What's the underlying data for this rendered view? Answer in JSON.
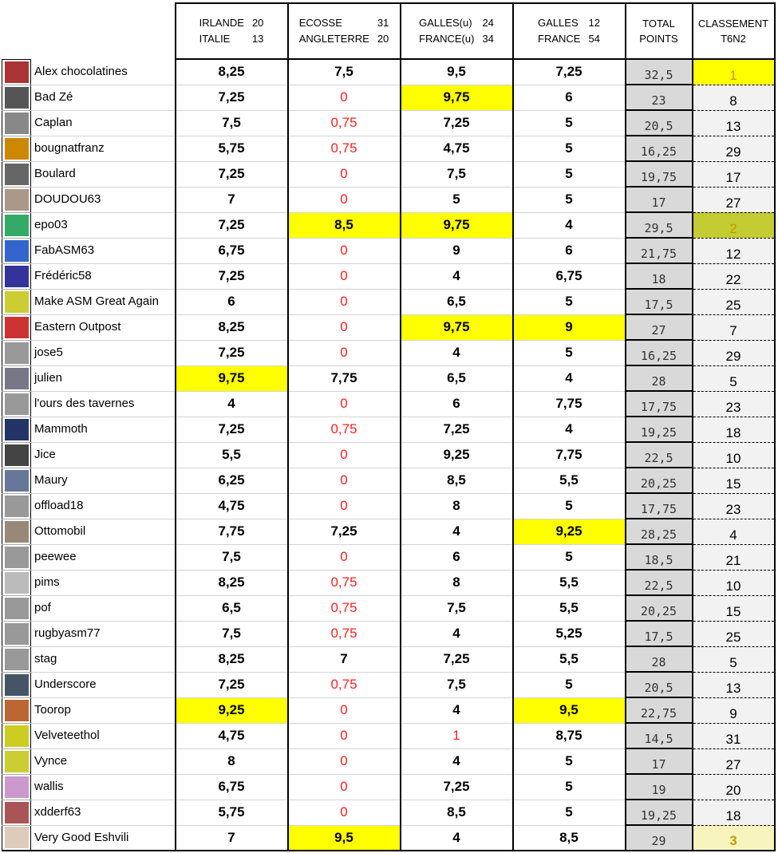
{
  "headers": {
    "match1": [
      "IRLANDE",
      "20",
      "ITALIE",
      "13"
    ],
    "match2": [
      "ECOSSE",
      "31",
      "ANGLETERRE",
      "20"
    ],
    "match3": [
      "GALLES(u)",
      "24",
      "FRANCE(u)",
      "34"
    ],
    "match4": [
      "GALLES",
      "12",
      "FRANCE",
      "54"
    ],
    "total": [
      "TOTAL",
      "POINTS"
    ],
    "rank": [
      "CLASSEMENT",
      "T6N2"
    ]
  },
  "colors": {
    "highlight": "#ffff00",
    "red": "#ff2020",
    "rank1": "#ffff00",
    "rank2": "#c4cc33",
    "rank3": "#f7f4bd"
  },
  "rows": [
    {
      "name": "Alex chocolatines",
      "scores": [
        "8,25",
        "7,5",
        "9,5",
        "7,25"
      ],
      "total": "32,5",
      "rank": "1",
      "yellow": [],
      "red": []
    },
    {
      "name": "Bad Zé",
      "scores": [
        "7,25",
        "0",
        "9,75",
        "6"
      ],
      "total": "23",
      "rank": "8",
      "yellow": [
        2
      ],
      "red": [
        1
      ]
    },
    {
      "name": "Caplan",
      "scores": [
        "7,5",
        "0,75",
        "7,25",
        "5"
      ],
      "total": "20,5",
      "rank": "13",
      "yellow": [],
      "red": [
        1
      ]
    },
    {
      "name": "bougnatfranz",
      "scores": [
        "5,75",
        "0,75",
        "4,75",
        "5"
      ],
      "total": "16,25",
      "rank": "29",
      "yellow": [],
      "red": [
        1
      ]
    },
    {
      "name": "Boulard",
      "scores": [
        "7,25",
        "0",
        "7,5",
        "5"
      ],
      "total": "19,75",
      "rank": "17",
      "yellow": [],
      "red": [
        1
      ]
    },
    {
      "name": "DOUDOU63",
      "scores": [
        "7",
        "0",
        "5",
        "5"
      ],
      "total": "17",
      "rank": "27",
      "yellow": [],
      "red": [
        1
      ]
    },
    {
      "name": "epo03",
      "scores": [
        "7,25",
        "8,5",
        "9,75",
        "4"
      ],
      "total": "29,5",
      "rank": "2",
      "yellow": [
        1,
        2
      ],
      "red": []
    },
    {
      "name": "FabASM63",
      "scores": [
        "6,75",
        "0",
        "9",
        "6"
      ],
      "total": "21,75",
      "rank": "12",
      "yellow": [],
      "red": [
        1
      ]
    },
    {
      "name": "Frédéric58",
      "scores": [
        "7,25",
        "0",
        "4",
        "6,75"
      ],
      "total": "18",
      "rank": "22",
      "yellow": [],
      "red": [
        1
      ]
    },
    {
      "name": "Make ASM Great Again",
      "scores": [
        "6",
        "0",
        "6,5",
        "5"
      ],
      "total": "17,5",
      "rank": "25",
      "yellow": [],
      "red": [
        1
      ]
    },
    {
      "name": "Eastern Outpost",
      "scores": [
        "8,25",
        "0",
        "9,75",
        "9"
      ],
      "total": "27",
      "rank": "7",
      "yellow": [
        2,
        3
      ],
      "red": [
        1
      ]
    },
    {
      "name": "jose5",
      "scores": [
        "7,25",
        "0",
        "4",
        "5"
      ],
      "total": "16,25",
      "rank": "29",
      "yellow": [],
      "red": [
        1
      ]
    },
    {
      "name": "julien",
      "scores": [
        "9,75",
        "7,75",
        "6,5",
        "4"
      ],
      "total": "28",
      "rank": "5",
      "yellow": [
        0
      ],
      "red": []
    },
    {
      "name": "l'ours des tavernes",
      "scores": [
        "4",
        "0",
        "6",
        "7,75"
      ],
      "total": "17,75",
      "rank": "23",
      "yellow": [],
      "red": [
        1
      ]
    },
    {
      "name": "Mammoth",
      "scores": [
        "7,25",
        "0,75",
        "7,25",
        "4"
      ],
      "total": "19,25",
      "rank": "18",
      "yellow": [],
      "red": [
        1
      ]
    },
    {
      "name": "Jice",
      "scores": [
        "5,5",
        "0",
        "9,25",
        "7,75"
      ],
      "total": "22,5",
      "rank": "10",
      "yellow": [],
      "red": [
        1
      ]
    },
    {
      "name": "Maury",
      "scores": [
        "6,25",
        "0",
        "8,5",
        "5,5"
      ],
      "total": "20,25",
      "rank": "15",
      "yellow": [],
      "red": [
        1
      ]
    },
    {
      "name": "offload18",
      "scores": [
        "4,75",
        "0",
        "8",
        "5"
      ],
      "total": "17,75",
      "rank": "23",
      "yellow": [],
      "red": [
        1
      ]
    },
    {
      "name": "Ottomobil",
      "scores": [
        "7,75",
        "7,25",
        "4",
        "9,25"
      ],
      "total": "28,25",
      "rank": "4",
      "yellow": [
        3
      ],
      "red": []
    },
    {
      "name": "peewee",
      "scores": [
        "7,5",
        "0",
        "6",
        "5"
      ],
      "total": "18,5",
      "rank": "21",
      "yellow": [],
      "red": [
        1
      ]
    },
    {
      "name": "pims",
      "scores": [
        "8,25",
        "0,75",
        "8",
        "5,5"
      ],
      "total": "22,5",
      "rank": "10",
      "yellow": [],
      "red": [
        1
      ]
    },
    {
      "name": "pof",
      "scores": [
        "6,5",
        "0,75",
        "7,5",
        "5,5"
      ],
      "total": "20,25",
      "rank": "15",
      "yellow": [],
      "red": [
        1
      ]
    },
    {
      "name": "rugbyasm77",
      "scores": [
        "7,5",
        "0,75",
        "4",
        "5,25"
      ],
      "total": "17,5",
      "rank": "25",
      "yellow": [],
      "red": [
        1
      ]
    },
    {
      "name": "stag",
      "scores": [
        "8,25",
        "7",
        "7,25",
        "5,5"
      ],
      "total": "28",
      "rank": "5",
      "yellow": [],
      "red": []
    },
    {
      "name": "Underscore",
      "scores": [
        "7,25",
        "0,75",
        "7,5",
        "5"
      ],
      "total": "20,5",
      "rank": "13",
      "yellow": [],
      "red": [
        1
      ]
    },
    {
      "name": "Toorop",
      "scores": [
        "9,25",
        "0",
        "4",
        "9,5"
      ],
      "total": "22,75",
      "rank": "9",
      "yellow": [
        0,
        3
      ],
      "red": [
        1
      ]
    },
    {
      "name": "Velveteethol",
      "scores": [
        "4,75",
        "0",
        "1",
        "8,75"
      ],
      "total": "14,5",
      "rank": "31",
      "yellow": [],
      "red": [
        1,
        2
      ]
    },
    {
      "name": "Vynce",
      "scores": [
        "8",
        "0",
        "4",
        "5"
      ],
      "total": "17",
      "rank": "27",
      "yellow": [],
      "red": [
        1
      ]
    },
    {
      "name": "wallis",
      "scores": [
        "6,75",
        "0",
        "7,25",
        "5"
      ],
      "total": "19",
      "rank": "20",
      "yellow": [],
      "red": [
        1
      ]
    },
    {
      "name": "xdderf63",
      "scores": [
        "5,75",
        "0",
        "8,5",
        "5"
      ],
      "total": "19,25",
      "rank": "18",
      "yellow": [],
      "red": [
        1
      ]
    },
    {
      "name": "Very Good Eshvili",
      "scores": [
        "7",
        "9,5",
        "4",
        "8,5"
      ],
      "total": "29",
      "rank": "3",
      "yellow": [
        1
      ],
      "red": []
    }
  ]
}
